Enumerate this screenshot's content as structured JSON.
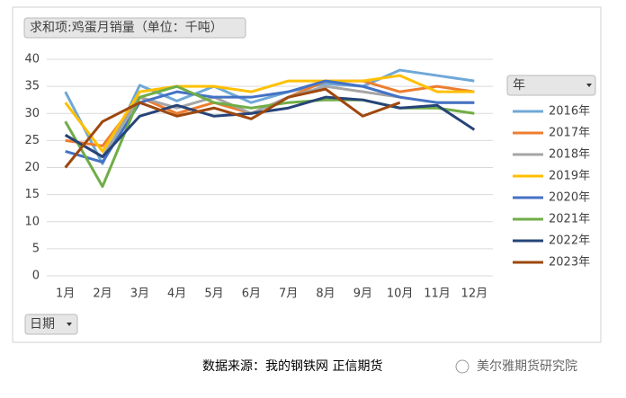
{
  "chart_data": {
    "type": "line",
    "title": "求和项:鸡蛋月销量（单位：千吨）",
    "legend_title": "年",
    "x_field": "日期",
    "categories": [
      "1月",
      "2月",
      "3月",
      "4月",
      "5月",
      "6月",
      "7月",
      "8月",
      "9月",
      "10月",
      "11月",
      "12月"
    ],
    "ylim": [
      0,
      40
    ],
    "yticks": [
      0,
      5,
      10,
      15,
      20,
      25,
      30,
      35,
      40
    ],
    "grid": true,
    "legend": "right",
    "series": [
      {
        "name": "2016年",
        "color": "#6fa8d6",
        "values": [
          34,
          20.7,
          35.2,
          32.3,
          35,
          32,
          34,
          35.5,
          35,
          38,
          37,
          36
        ]
      },
      {
        "name": "2017年",
        "color": "#ed7d31",
        "values": [
          25,
          24,
          33,
          30,
          32,
          30,
          33,
          36,
          36,
          34,
          35,
          34
        ]
      },
      {
        "name": "2018年",
        "color": "#a5a5a5",
        "values": [
          26,
          22,
          33,
          31,
          33,
          30,
          33,
          35,
          34,
          33,
          32,
          32
        ]
      },
      {
        "name": "2019年",
        "color": "#ffc000",
        "values": [
          32,
          23,
          34,
          35,
          35,
          34,
          36,
          36,
          36,
          37,
          34,
          34
        ]
      },
      {
        "name": "2020年",
        "color": "#4472c4",
        "values": [
          23,
          21,
          32,
          34,
          33,
          33,
          34,
          36,
          35,
          33,
          32,
          32
        ]
      },
      {
        "name": "2021年",
        "color": "#70ad47",
        "values": [
          28.5,
          16.5,
          33,
          35,
          32,
          31,
          32,
          32.5,
          32.5,
          31,
          31,
          30
        ]
      },
      {
        "name": "2022年",
        "color": "#264478",
        "values": [
          26,
          22,
          29.5,
          31.5,
          29.5,
          30,
          31,
          33,
          32.5,
          31,
          31.5,
          27
        ]
      },
      {
        "name": "2023年",
        "color": "#9e480e",
        "values": [
          20,
          28.5,
          32,
          29.5,
          31,
          29,
          33,
          34.5,
          29.5,
          32,
          null,
          null
        ]
      }
    ]
  },
  "footer": {
    "source": "数据来源：我的钢铁网 正信期货",
    "watermark": "美尔雅期货研究院"
  }
}
